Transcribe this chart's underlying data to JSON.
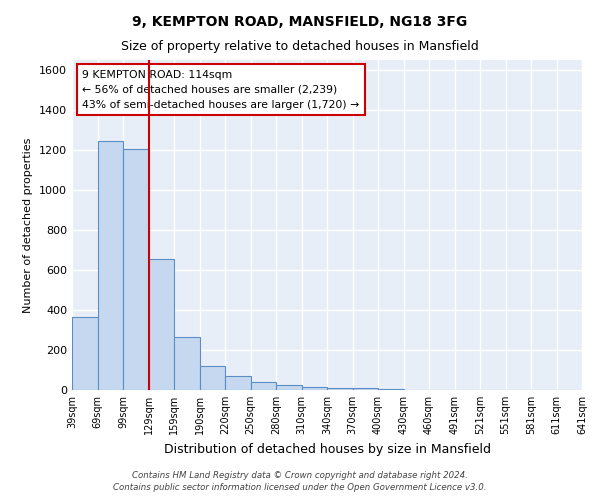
{
  "title": "9, KEMPTON ROAD, MANSFIELD, NG18 3FG",
  "subtitle": "Size of property relative to detached houses in Mansfield",
  "xlabel": "Distribution of detached houses by size in Mansfield",
  "ylabel": "Number of detached properties",
  "bar_values": [
    365,
    1245,
    1205,
    655,
    265,
    120,
    70,
    38,
    25,
    17,
    10,
    8,
    3,
    2,
    0,
    0,
    0,
    0,
    0,
    0
  ],
  "bar_labels": [
    "39sqm",
    "69sqm",
    "99sqm",
    "129sqm",
    "159sqm",
    "190sqm",
    "220sqm",
    "250sqm",
    "280sqm",
    "310sqm",
    "340sqm",
    "370sqm",
    "400sqm",
    "430sqm",
    "460sqm",
    "491sqm",
    "521sqm",
    "551sqm",
    "581sqm",
    "611sqm",
    "641sqm"
  ],
  "bar_color": "#c5d8f0",
  "bar_edge_color": "#5b8ec4",
  "background_color": "#e8eef8",
  "grid_color": "#ffffff",
  "red_line_x": 2.5,
  "annotation_text": "9 KEMPTON ROAD: 114sqm\n← 56% of detached houses are smaller (2,239)\n43% of semi-detached houses are larger (1,720) →",
  "annotation_box_color": "#ffffff",
  "annotation_box_edge": "#cc0000",
  "ylim": [
    0,
    1650
  ],
  "yticks": [
    0,
    200,
    400,
    600,
    800,
    1000,
    1200,
    1400,
    1600
  ],
  "fig_background": "#ffffff",
  "footer1": "Contains HM Land Registry data © Crown copyright and database right 2024.",
  "footer2": "Contains public sector information licensed under the Open Government Licence v3.0."
}
